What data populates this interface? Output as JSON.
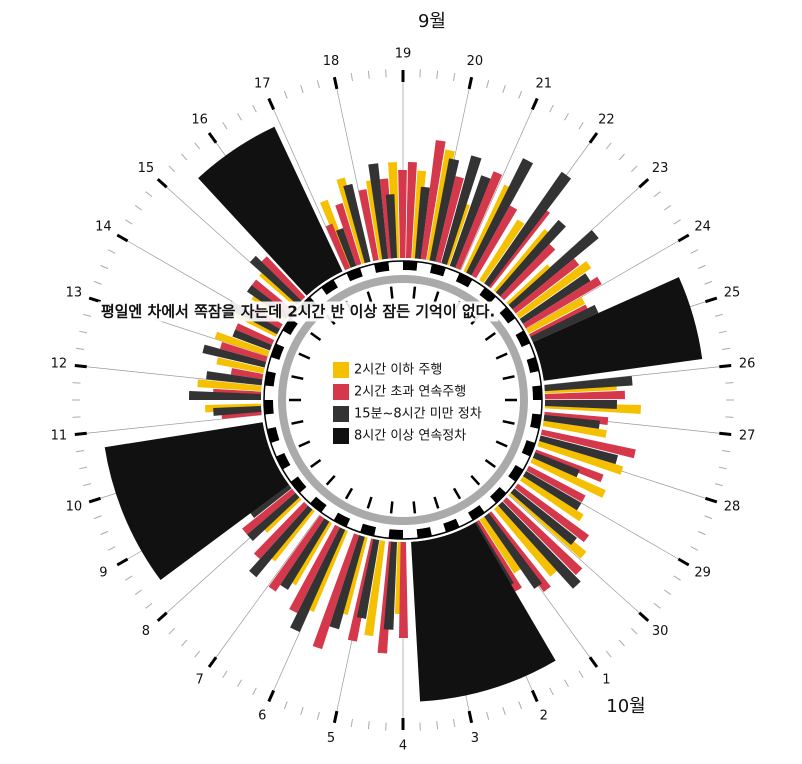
{
  "chart_data": {
    "type": "radial-bar",
    "annotation": "평일엔 차에서 쪽잠을 자는데 2시간 반 이상 잠든 기억이 없다.",
    "month_labels": [
      {
        "label": "9월",
        "day": 0
      },
      {
        "label": "10월",
        "day": 12
      }
    ],
    "categories": [
      "19",
      "20",
      "21",
      "22",
      "23",
      "24",
      "25",
      "26",
      "27",
      "28",
      "29",
      "30",
      "1",
      "2",
      "3",
      "4",
      "5",
      "6",
      "7",
      "8",
      "9",
      "10",
      "11",
      "12",
      "13",
      "14",
      "15",
      "16",
      "17",
      "18"
    ],
    "minor_ticks_per_day": 4,
    "ylim": [
      0,
      100
    ],
    "series": [
      {
        "name": "2시간 이하 주행",
        "color": "#f5c000",
        "width": 0.18,
        "values": [
          [
            0.3,
            55
          ],
          [
            0.8,
            70
          ],
          [
            1.4,
            40
          ],
          [
            2.1,
            60
          ],
          [
            2.7,
            45
          ],
          [
            3.3,
            50
          ],
          [
            3.9,
            35
          ],
          [
            4.4,
            55
          ],
          [
            5.0,
            40
          ],
          [
            7.1,
            45
          ],
          [
            7.6,
            60
          ],
          [
            8.2,
            40
          ],
          [
            8.9,
            55
          ],
          [
            9.5,
            50
          ],
          [
            10.2,
            45
          ],
          [
            10.8,
            60
          ],
          [
            11.5,
            55
          ],
          [
            12.1,
            40
          ],
          [
            15.0,
            45
          ],
          [
            15.6,
            60
          ],
          [
            16.2,
            50
          ],
          [
            16.9,
            55
          ],
          [
            17.5,
            45
          ],
          [
            18.2,
            40
          ],
          [
            18.8,
            30
          ],
          [
            22.2,
            35
          ],
          [
            22.8,
            40
          ],
          [
            23.4,
            30
          ],
          [
            24.0,
            35
          ],
          [
            24.7,
            30
          ],
          [
            25.3,
            25
          ],
          [
            25.9,
            30
          ],
          [
            28.1,
            45
          ],
          [
            28.6,
            55
          ],
          [
            29.2,
            50
          ],
          [
            29.7,
            60
          ]
        ]
      },
      {
        "name": "2시간 초과 연속주행",
        "color": "#d6384b",
        "width": 0.18,
        "values": [
          [
            0.1,
            60
          ],
          [
            0.6,
            75
          ],
          [
            1.1,
            55
          ],
          [
            1.8,
            65
          ],
          [
            2.4,
            50
          ],
          [
            3.0,
            60
          ],
          [
            3.6,
            45
          ],
          [
            4.2,
            50
          ],
          [
            4.8,
            55
          ],
          [
            5.2,
            40
          ],
          [
            7.3,
            50
          ],
          [
            7.9,
            40
          ],
          [
            8.5,
            60
          ],
          [
            9.2,
            45
          ],
          [
            9.8,
            40
          ],
          [
            10.5,
            55
          ],
          [
            11.1,
            65
          ],
          [
            11.8,
            60
          ],
          [
            12.3,
            50
          ],
          [
            14.9,
            60
          ],
          [
            15.3,
            70
          ],
          [
            15.9,
            65
          ],
          [
            16.5,
            75
          ],
          [
            17.2,
            60
          ],
          [
            17.8,
            55
          ],
          [
            18.5,
            45
          ],
          [
            19.1,
            40
          ],
          [
            22.0,
            25
          ],
          [
            22.6,
            30
          ],
          [
            23.2,
            20
          ],
          [
            23.8,
            30
          ],
          [
            24.4,
            25
          ],
          [
            25.0,
            20
          ],
          [
            25.6,
            30
          ],
          [
            26.2,
            35
          ],
          [
            28.0,
            30
          ],
          [
            28.4,
            40
          ],
          [
            29.0,
            45
          ],
          [
            29.5,
            50
          ],
          [
            29.9,
            55
          ]
        ]
      },
      {
        "name": "15분~8시간 미만 정차",
        "color": "#333333",
        "width": 0.2,
        "values": [
          [
            0.4,
            45
          ],
          [
            0.9,
            65
          ],
          [
            1.3,
            70
          ],
          [
            1.6,
            60
          ],
          [
            2.2,
            80
          ],
          [
            2.9,
            85
          ],
          [
            3.4,
            60
          ],
          [
            4.0,
            70
          ],
          [
            4.6,
            50
          ],
          [
            5.3,
            45
          ],
          [
            7.0,
            55
          ],
          [
            7.5,
            45
          ],
          [
            8.0,
            35
          ],
          [
            8.7,
            50
          ],
          [
            9.3,
            30
          ],
          [
            10.0,
            40
          ],
          [
            10.7,
            50
          ],
          [
            11.3,
            70
          ],
          [
            11.9,
            55
          ],
          [
            12.4,
            45
          ],
          [
            15.2,
            55
          ],
          [
            15.8,
            50
          ],
          [
            16.3,
            60
          ],
          [
            17.0,
            70
          ],
          [
            17.6,
            50
          ],
          [
            18.3,
            55
          ],
          [
            18.9,
            40
          ],
          [
            19.3,
            30
          ],
          [
            22.1,
            30
          ],
          [
            22.5,
            45
          ],
          [
            23.0,
            35
          ],
          [
            23.6,
            40
          ],
          [
            24.2,
            25
          ],
          [
            24.8,
            35
          ],
          [
            25.4,
            30
          ],
          [
            26.0,
            40
          ],
          [
            28.2,
            25
          ],
          [
            28.7,
            50
          ],
          [
            29.3,
            60
          ],
          [
            29.6,
            40
          ]
        ]
      },
      {
        "name": "8시간 이상 연속정차",
        "color": "#111111",
        "values": [
          [
            5.5,
            6.85,
            100
          ],
          [
            12.47,
            14.73,
            100
          ],
          [
            19.45,
            21.75,
            100
          ],
          [
            26.44,
            27.9,
            100
          ]
        ]
      }
    ]
  }
}
